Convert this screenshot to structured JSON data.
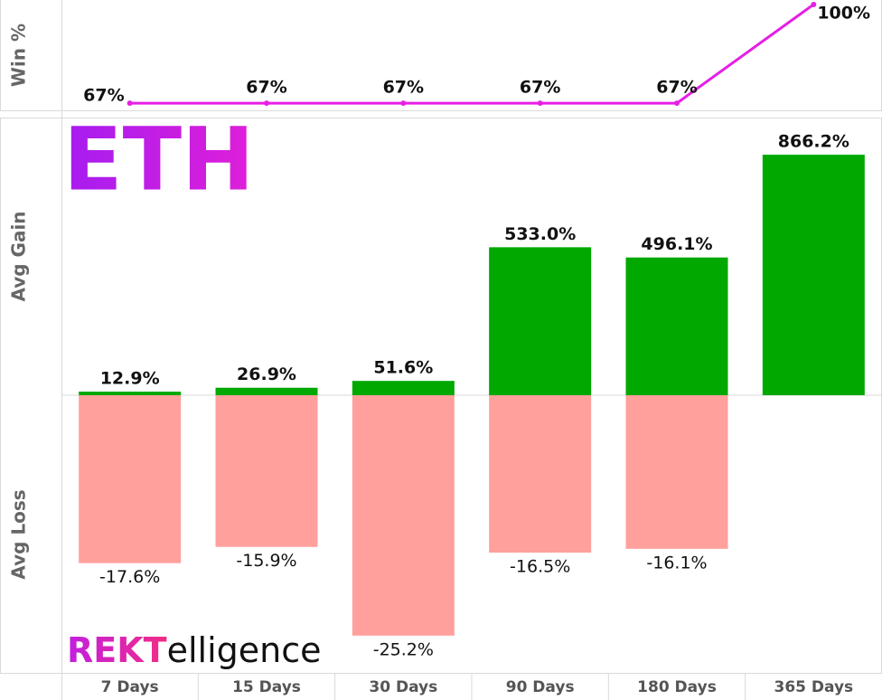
{
  "chart_data": [
    {
      "type": "line",
      "y_label": "Win %",
      "values": [
        67,
        67,
        67,
        67,
        67,
        100
      ],
      "value_labels": [
        "67%",
        "67%",
        "67%",
        "67%",
        "67%",
        "100%"
      ],
      "color": "#e61ee6",
      "ylim": [
        64.6,
        101.5
      ]
    },
    {
      "type": "bar",
      "title": "ETH",
      "y_label": "Avg Gain",
      "values": [
        12.9,
        26.9,
        51.6,
        533.0,
        496.1,
        866.2
      ],
      "value_labels": [
        "12.9%",
        "26.9%",
        "51.6%",
        "533.0%",
        "496.1%",
        "866.2%"
      ],
      "color": "#00a800",
      "ylim": [
        0,
        1000
      ]
    },
    {
      "type": "bar",
      "y_label": "Avg Loss",
      "categories": [
        "7 Days",
        "15 Days",
        "30 Days",
        "90 Days",
        "180 Days",
        "365 Days"
      ],
      "values": [
        -17.6,
        -15.9,
        -25.2,
        -16.5,
        -16.1,
        null
      ],
      "value_labels": [
        "-17.6%",
        "-15.9%",
        "-25.2%",
        "-16.5%",
        "-16.1%",
        null
      ],
      "color": "#ffa09c",
      "ylim": [
        -29.2,
        0
      ]
    }
  ],
  "logo": {
    "prefix": "REKT",
    "suffix": "elligence"
  }
}
